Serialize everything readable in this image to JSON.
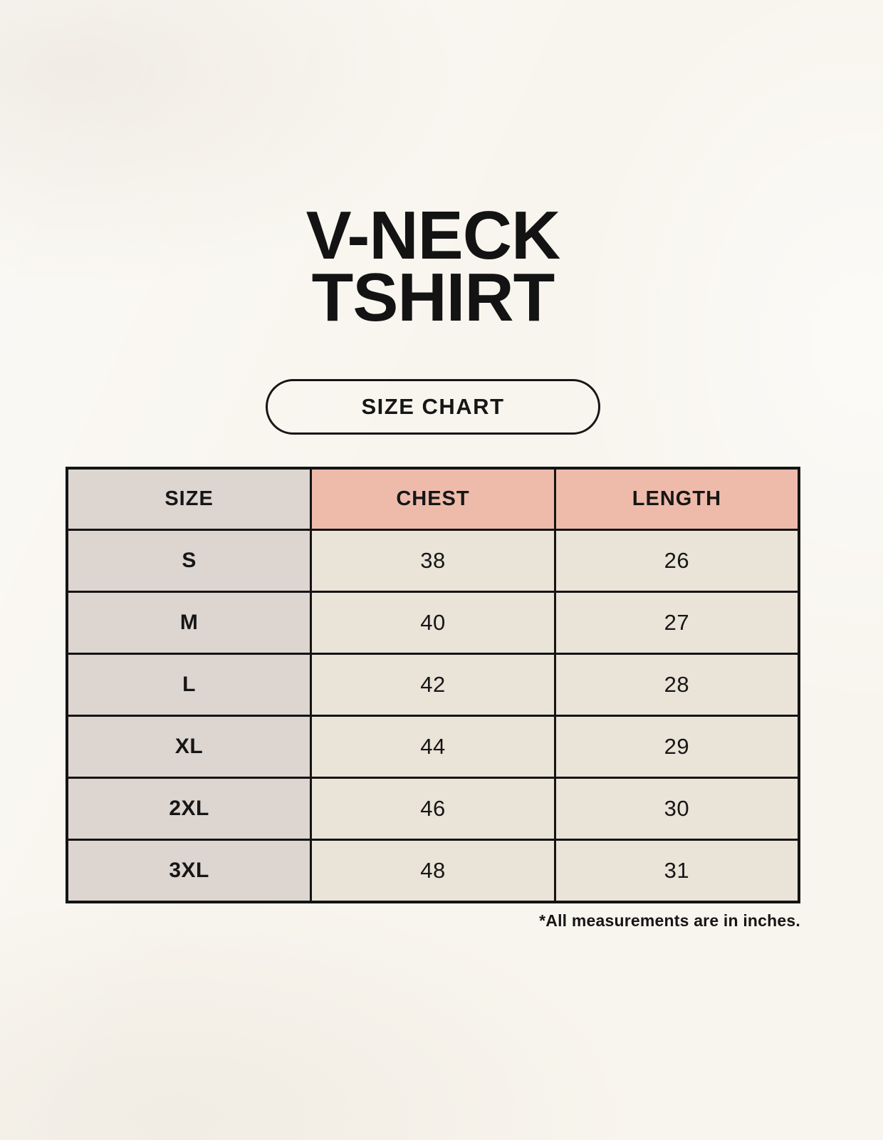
{
  "page": {
    "title_line1": "V-NECK",
    "title_line2": "TSHIRT",
    "size_chart_label": "SIZE CHART",
    "footnote": "*All measurements are in inches."
  },
  "colors": {
    "background": "#f8f5ee",
    "header_pink": "#eebbab",
    "size_column_gray": "#dcd5d0",
    "value_cell_cream": "#eae3d8",
    "border_black": "#141414",
    "text_black": "#161616"
  },
  "chart_data": {
    "type": "table",
    "title": "V-NECK TSHIRT",
    "subtitle": "SIZE CHART",
    "columns": [
      "SIZE",
      "CHEST",
      "LENGTH"
    ],
    "rows": [
      [
        "S",
        "38",
        "26"
      ],
      [
        "M",
        "40",
        "27"
      ],
      [
        "L",
        "42",
        "28"
      ],
      [
        "XL",
        "44",
        "29"
      ],
      [
        "2XL",
        "46",
        "30"
      ],
      [
        "3XL",
        "48",
        "31"
      ]
    ],
    "units_note": "*All measurements are in inches.",
    "layout_hints": {
      "columns_equal_width": true,
      "header_row_highlight": [
        "CHEST",
        "LENGTH"
      ],
      "size_column_highlight": true
    }
  }
}
